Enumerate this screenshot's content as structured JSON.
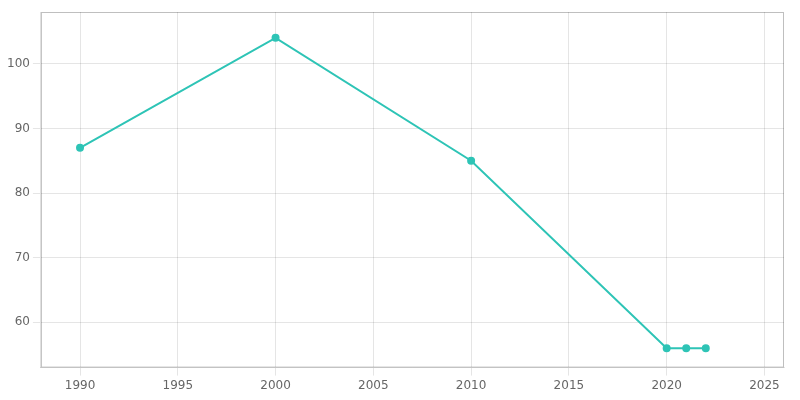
{
  "chart_data": {
    "type": "line",
    "x": [
      1990,
      2000,
      2010,
      2020,
      2021,
      2022
    ],
    "values": [
      87,
      104,
      85,
      56,
      56,
      56
    ],
    "color": "#2ec4b6",
    "marker": "circle",
    "xlim": [
      1988,
      2026
    ],
    "ylim": [
      53,
      108
    ],
    "xticks": [
      1990,
      1995,
      2000,
      2005,
      2010,
      2015,
      2020,
      2025
    ],
    "yticks": [
      60,
      70,
      80,
      90,
      100
    ],
    "grid": true
  }
}
